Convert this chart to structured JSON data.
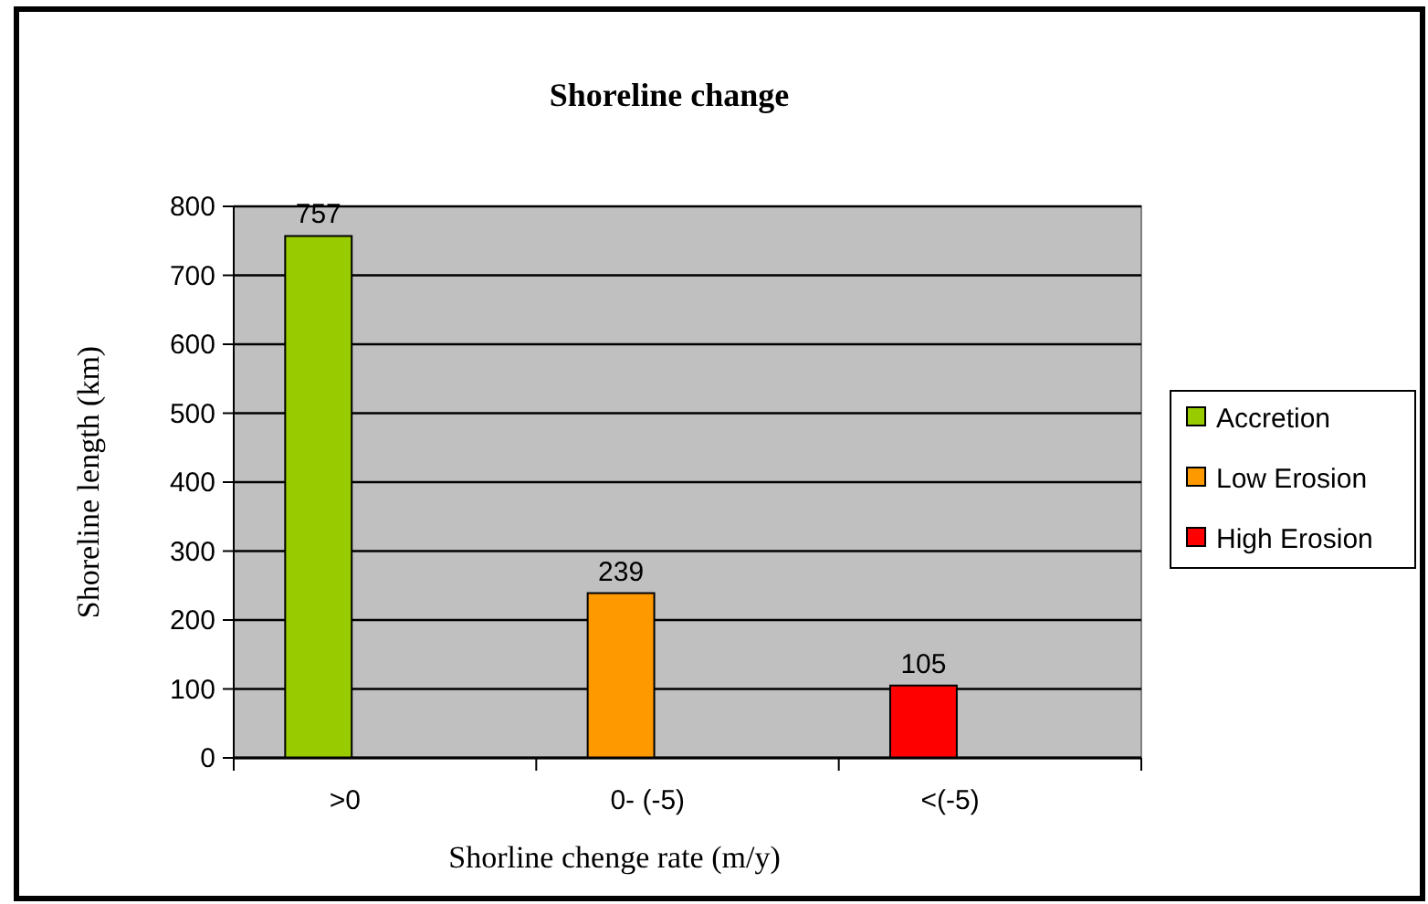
{
  "chart_data": {
    "type": "bar",
    "title": "Shoreline change",
    "xlabel": "Shorline chenge rate (m/y)",
    "ylabel": "Shoreline length (km)",
    "categories": [
      ">0",
      "0- (-5)",
      "<(-5)"
    ],
    "series": [
      {
        "name": "Accretion",
        "color": "#99cc00",
        "values": [
          757,
          null,
          null
        ]
      },
      {
        "name": "Low Erosion",
        "color": "#ff9900",
        "values": [
          null,
          239,
          null
        ]
      },
      {
        "name": "High Erosion",
        "color": "#ff0000",
        "values": [
          null,
          null,
          105
        ]
      }
    ],
    "ylim": [
      0,
      800
    ],
    "yticks": [
      0,
      100,
      200,
      300,
      400,
      500,
      600,
      700,
      800
    ],
    "grid": "y",
    "legend": "right",
    "data_labels": true
  }
}
